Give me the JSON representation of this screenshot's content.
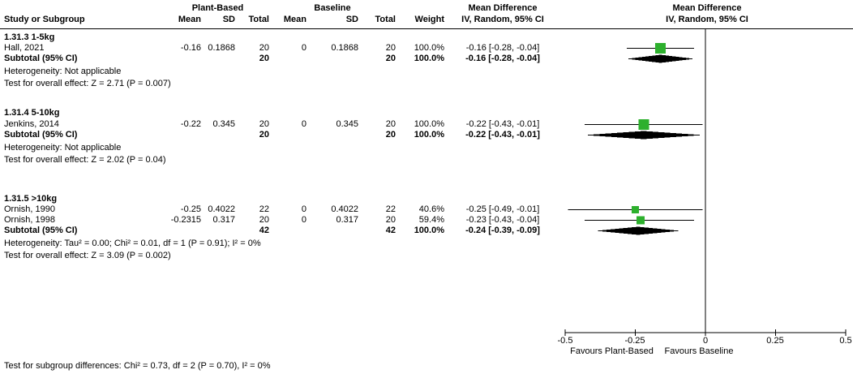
{
  "header": {
    "group1": "Plant-Based",
    "group2": "Baseline",
    "md_col_line1": "Mean Difference",
    "md_col_line2": "IV, Random, 95% CI",
    "plot_line1": "Mean Difference",
    "plot_line2": "IV, Random, 95% CI",
    "study": "Study or Subgroup",
    "mean": "Mean",
    "sd": "SD",
    "total": "Total",
    "weight": "Weight"
  },
  "subgroups": [
    {
      "title": "1.31.3 1-5kg",
      "studies": [
        {
          "name": "Hall, 2021",
          "mean1": "-0.16",
          "sd1": "0.1868",
          "total1": "20",
          "mean2": "0",
          "sd2": "0.1868",
          "total2": "20",
          "weight": "100.0%",
          "ci": "-0.16 [-0.28, -0.04]"
        }
      ],
      "subtotal": {
        "label": "Subtotal (95% CI)",
        "total1": "20",
        "total2": "20",
        "weight": "100.0%",
        "ci": "-0.16 [-0.28, -0.04]"
      },
      "heterogeneity": "Heterogeneity: Not applicable",
      "overall_test": "Test for overall effect: Z = 2.71 (P = 0.007)"
    },
    {
      "title": "1.31.4 5-10kg",
      "studies": [
        {
          "name": "Jenkins, 2014",
          "mean1": "-0.22",
          "sd1": "0.345",
          "total1": "20",
          "mean2": "0",
          "sd2": "0.345",
          "total2": "20",
          "weight": "100.0%",
          "ci": "-0.22 [-0.43, -0.01]"
        }
      ],
      "subtotal": {
        "label": "Subtotal (95% CI)",
        "total1": "20",
        "total2": "20",
        "weight": "100.0%",
        "ci": "-0.22 [-0.43, -0.01]"
      },
      "heterogeneity": "Heterogeneity: Not applicable",
      "overall_test": "Test for overall effect: Z = 2.02 (P = 0.04)"
    },
    {
      "title": "1.31.5 >10kg",
      "studies": [
        {
          "name": "Ornish, 1990",
          "mean1": "-0.25",
          "sd1": "0.4022",
          "total1": "22",
          "mean2": "0",
          "sd2": "0.4022",
          "total2": "22",
          "weight": "40.6%",
          "ci": "-0.25 [-0.49, -0.01]"
        },
        {
          "name": "Ornish, 1998",
          "mean1": "-0.2315",
          "sd1": "0.317",
          "total1": "20",
          "mean2": "0",
          "sd2": "0.317",
          "total2": "20",
          "weight": "59.4%",
          "ci": "-0.23 [-0.43, -0.04]"
        }
      ],
      "subtotal": {
        "label": "Subtotal (95% CI)",
        "total1": "42",
        "total2": "42",
        "weight": "100.0%",
        "ci": "-0.24 [-0.39, -0.09]"
      },
      "heterogeneity": "Heterogeneity: Tau² = 0.00; Chi² = 0.01, df = 1 (P = 0.91); I² = 0%",
      "overall_test": "Test for overall effect: Z = 3.09 (P = 0.002)"
    }
  ],
  "subgroup_test": "Test for subgroup differences: Chi² = 0.73, df = 2 (P = 0.70), I² = 0%",
  "axis": {
    "tick_labels": [
      "-0.5",
      "-0.25",
      "0",
      "0.25",
      "0.5"
    ],
    "favours_left": "Favours Plant-Based",
    "favours_right": "Favours Baseline"
  },
  "colors": {
    "marker": "#2db02d",
    "line": "#000000"
  },
  "chart_data": {
    "type": "scatter",
    "variant": "forest-plot",
    "title": "Mean Difference, IV, Random, 95% CI",
    "xlim": [
      -0.5,
      0.5
    ],
    "ticks": [
      -0.5,
      -0.25,
      0,
      0.25,
      0.5
    ],
    "zero_line": 0,
    "favours": [
      "Favours Plant-Based",
      "Favours Baseline"
    ],
    "groups": [
      {
        "name": "1.31.3 1-5kg",
        "studies": [
          {
            "name": "Hall, 2021",
            "est": -0.16,
            "lo": -0.28,
            "hi": -0.04,
            "weight_pct": 100.0
          }
        ],
        "subtotal": {
          "est": -0.16,
          "lo": -0.28,
          "hi": -0.04
        }
      },
      {
        "name": "1.31.4 5-10kg",
        "studies": [
          {
            "name": "Jenkins, 2014",
            "est": -0.22,
            "lo": -0.43,
            "hi": -0.01,
            "weight_pct": 100.0
          }
        ],
        "subtotal": {
          "est": -0.22,
          "lo": -0.43,
          "hi": -0.01
        }
      },
      {
        "name": "1.31.5 >10kg",
        "studies": [
          {
            "name": "Ornish, 1990",
            "est": -0.25,
            "lo": -0.49,
            "hi": -0.01,
            "weight_pct": 40.6
          },
          {
            "name": "Ornish, 1998",
            "est": -0.2315,
            "lo": -0.43,
            "hi": -0.04,
            "weight_pct": 59.4
          }
        ],
        "subtotal": {
          "est": -0.24,
          "lo": -0.39,
          "hi": -0.09
        }
      }
    ]
  }
}
